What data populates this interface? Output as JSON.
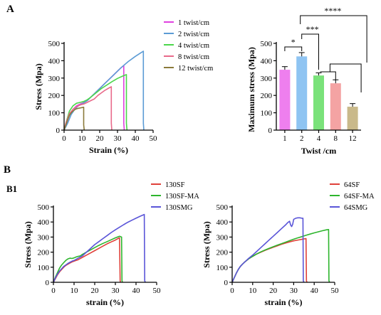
{
  "panels": {
    "A": "A",
    "B": "B",
    "B1": "B1"
  },
  "colors": {
    "tw1": "#e040e0",
    "tw2": "#5b9bd5",
    "tw4": "#4bd64b",
    "tw8": "#e86a8a",
    "tw12": "#8b7a3a",
    "bar1": "#ee7fee",
    "bar2": "#8fc4f2",
    "bar4": "#7ae27a",
    "bar8": "#f4a3a3",
    "bar12": "#c9b98a",
    "sf": "#e0413a",
    "sfma": "#2db52d",
    "smg": "#5a55d8"
  },
  "chart_data": [
    {
      "id": "a1",
      "type": "line",
      "xlabel": "Strain (%)",
      "ylabel": "Stress (Mpa)",
      "xlim": [
        0,
        50
      ],
      "ylim": [
        0,
        500
      ],
      "xticks": [
        "0",
        "10",
        "20",
        "30",
        "40",
        "50"
      ],
      "yticks": [
        "0",
        "100",
        "200",
        "300",
        "400",
        "500"
      ],
      "legend_position": "top-right",
      "series": [
        {
          "name": "1 twist/cm",
          "color_key": "tw1",
          "x": [
            0,
            1,
            3,
            5,
            7,
            9,
            11,
            13,
            15,
            17,
            20,
            23,
            26,
            29,
            32,
            33.5,
            33.5,
            33.8
          ],
          "y": [
            0,
            30,
            90,
            120,
            140,
            150,
            158,
            170,
            190,
            210,
            240,
            270,
            300,
            330,
            360,
            372,
            40,
            0
          ]
        },
        {
          "name": "2 twist/cm",
          "color_key": "tw2",
          "x": [
            0,
            2,
            4,
            6,
            8,
            10,
            13,
            16,
            20,
            24,
            28,
            32,
            36,
            40,
            43,
            44.5,
            44.5,
            44.8
          ],
          "y": [
            0,
            40,
            90,
            120,
            140,
            150,
            170,
            200,
            240,
            280,
            320,
            360,
            395,
            425,
            445,
            455,
            40,
            0
          ]
        },
        {
          "name": "4 twist/cm",
          "color_key": "tw4",
          "x": [
            0,
            1,
            3,
            5,
            7,
            9,
            11,
            13,
            15,
            18,
            21,
            24,
            27,
            30,
            33,
            35,
            35,
            35.3
          ],
          "y": [
            0,
            40,
            110,
            140,
            155,
            160,
            165,
            175,
            190,
            215,
            240,
            260,
            280,
            298,
            312,
            320,
            40,
            0
          ]
        },
        {
          "name": "8 twist/cm",
          "color_key": "tw8",
          "x": [
            0,
            1,
            3,
            5,
            7,
            9,
            11,
            13,
            15,
            17,
            19,
            21,
            23,
            25,
            26.5,
            26.5,
            26.8
          ],
          "y": [
            0,
            40,
            95,
            120,
            135,
            145,
            150,
            160,
            170,
            180,
            200,
            215,
            230,
            242,
            250,
            40,
            0
          ]
        },
        {
          "name": "12 twist/cm",
          "color_key": "tw12",
          "x": [
            0,
            1,
            2,
            3,
            4,
            5,
            6,
            7,
            8,
            9,
            10,
            11,
            11,
            11.3
          ],
          "y": [
            0,
            30,
            60,
            85,
            100,
            110,
            118,
            123,
            126,
            128,
            130,
            132,
            30,
            0
          ]
        }
      ]
    },
    {
      "id": "a2",
      "type": "bar",
      "xlabel": "Twist /cm",
      "ylabel": "Maximum stress (Mpa)",
      "ylim": [
        0,
        500
      ],
      "yticks": [
        "0",
        "100",
        "200",
        "300",
        "400",
        "500"
      ],
      "categories": [
        "1",
        "2",
        "4",
        "8",
        "12"
      ],
      "values": [
        348,
        425,
        315,
        270,
        135
      ],
      "errors": [
        18,
        22,
        15,
        20,
        18
      ],
      "significance": [
        "*",
        "***",
        "****"
      ]
    },
    {
      "id": "b1",
      "type": "line",
      "xlabel": "strain (%)",
      "ylabel": "Stress (Mpa)",
      "xlim": [
        0,
        50
      ],
      "ylim": [
        0,
        500
      ],
      "xticks": [
        "0",
        "10",
        "20",
        "30",
        "40",
        "50"
      ],
      "yticks": [
        "0",
        "100",
        "200",
        "300",
        "400",
        "500"
      ],
      "legend_position": "top-right",
      "series": [
        {
          "name": "130SF",
          "color_key": "sf",
          "x": [
            0,
            1,
            2,
            3,
            4,
            5,
            6,
            7,
            8,
            9,
            10,
            11,
            12,
            14,
            16,
            18,
            20,
            22,
            24,
            26,
            28,
            30,
            31,
            32,
            32.3,
            32.5
          ],
          "y": [
            0,
            25,
            50,
            70,
            85,
            100,
            112,
            120,
            128,
            135,
            140,
            145,
            150,
            165,
            180,
            195,
            210,
            225,
            240,
            255,
            268,
            280,
            288,
            295,
            10,
            0
          ]
        },
        {
          "name": "130SF-MA",
          "color_key": "sfma",
          "x": [
            0,
            1,
            2,
            3,
            4,
            5,
            6,
            7,
            8,
            9,
            10,
            11,
            12,
            13,
            14,
            16,
            18,
            20,
            22,
            24,
            26,
            28,
            30,
            32,
            33,
            33.2,
            33.4
          ],
          "y": [
            0,
            35,
            65,
            95,
            115,
            130,
            145,
            155,
            160,
            158,
            162,
            168,
            172,
            175,
            185,
            200,
            215,
            230,
            245,
            258,
            270,
            282,
            295,
            305,
            300,
            10,
            0
          ]
        },
        {
          "name": "130SMG",
          "color_key": "smg",
          "x": [
            0,
            1,
            2,
            3,
            4,
            5,
            6,
            7,
            8,
            9,
            10,
            12,
            14,
            16,
            18,
            20,
            22,
            24,
            26,
            28,
            30,
            32,
            34,
            36,
            38,
            40,
            42,
            44,
            44.2,
            44.5
          ],
          "y": [
            0,
            30,
            55,
            75,
            90,
            105,
            115,
            125,
            133,
            140,
            145,
            160,
            175,
            200,
            225,
            250,
            270,
            290,
            310,
            330,
            348,
            365,
            382,
            398,
            412,
            425,
            438,
            450,
            10,
            0
          ]
        }
      ]
    },
    {
      "id": "b2",
      "type": "line",
      "xlabel": "strain (%)",
      "ylabel": "Stress (Mpa)",
      "xlim": [
        0,
        50
      ],
      "ylim": [
        0,
        500
      ],
      "xticks": [
        "0",
        "10",
        "20",
        "30",
        "40",
        "50"
      ],
      "yticks": [
        "0",
        "100",
        "200",
        "300",
        "400",
        "500"
      ],
      "legend_position": "top-right",
      "series": [
        {
          "name": "64SF",
          "color_key": "sf",
          "x": [
            0,
            1,
            2,
            3,
            4,
            5,
            6,
            8,
            10,
            12,
            14,
            16,
            18,
            20,
            22,
            24,
            26,
            28,
            30,
            32,
            34,
            36,
            36.2,
            36.5
          ],
          "y": [
            0,
            30,
            60,
            85,
            105,
            120,
            133,
            155,
            172,
            188,
            200,
            212,
            222,
            232,
            242,
            252,
            260,
            268,
            275,
            280,
            285,
            290,
            10,
            0
          ]
        },
        {
          "name": "64SF-MA",
          "color_key": "sfma",
          "x": [
            0,
            1,
            2,
            3,
            4,
            5,
            6,
            8,
            10,
            12,
            14,
            16,
            18,
            20,
            22,
            24,
            26,
            28,
            30,
            32,
            34,
            36,
            38,
            40,
            42,
            44,
            46,
            47,
            47.2,
            47.5
          ],
          "y": [
            0,
            30,
            60,
            85,
            105,
            120,
            133,
            155,
            172,
            188,
            202,
            214,
            225,
            236,
            246,
            256,
            266,
            276,
            286,
            295,
            303,
            312,
            320,
            328,
            335,
            342,
            348,
            350,
            10,
            0
          ]
        },
        {
          "name": "64SMG",
          "color_key": "smg",
          "x": [
            0,
            1,
            2,
            3,
            4,
            5,
            6,
            8,
            10,
            12,
            14,
            16,
            18,
            20,
            22,
            24,
            26,
            27,
            28,
            28.5,
            29,
            29.5,
            30,
            31,
            32,
            33,
            34,
            34.5,
            34.7,
            35
          ],
          "y": [
            0,
            30,
            60,
            85,
            105,
            120,
            133,
            158,
            180,
            205,
            230,
            255,
            280,
            305,
            330,
            355,
            380,
            395,
            405,
            380,
            370,
            385,
            418,
            425,
            428,
            428,
            425,
            425,
            10,
            0
          ]
        }
      ]
    }
  ]
}
